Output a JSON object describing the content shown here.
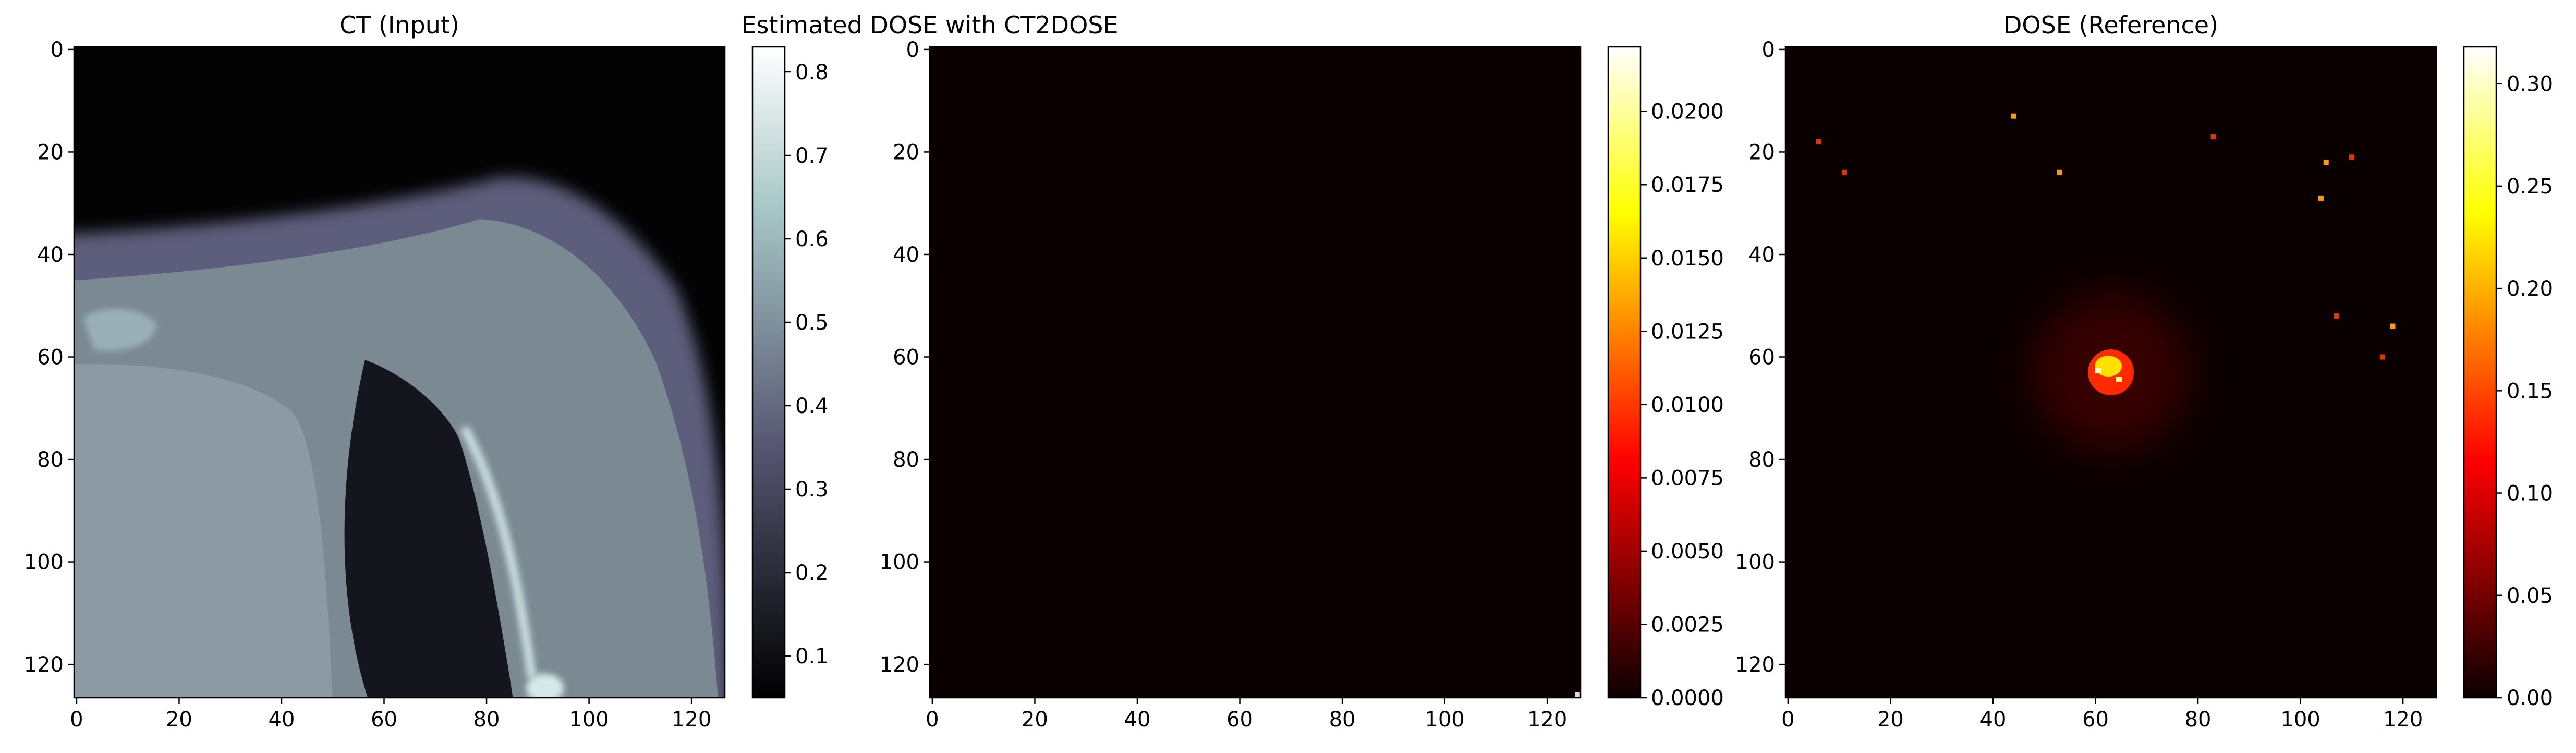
{
  "chart_data": [
    {
      "type": "heatmap",
      "title": "CT (Input)",
      "colormap": "bone",
      "x_ticks": [
        0,
        20,
        40,
        60,
        80,
        100,
        120
      ],
      "y_ticks": [
        0,
        20,
        40,
        60,
        80,
        100,
        120
      ],
      "xlim": [
        0,
        127
      ],
      "ylim": [
        127,
        0
      ],
      "colorbar": {
        "range": [
          0.05,
          0.83
        ],
        "ticks": [
          "0.1",
          "0.2",
          "0.3",
          "0.4",
          "0.5",
          "0.6",
          "0.7",
          "0.8"
        ],
        "tick_values": [
          0.1,
          0.2,
          0.3,
          0.4,
          0.5,
          0.6,
          0.7,
          0.8
        ]
      }
    },
    {
      "type": "heatmap",
      "title": "Estimated DOSE with CT2DOSE",
      "colormap": "hot",
      "x_ticks": [
        0,
        20,
        40,
        60,
        80,
        100,
        120
      ],
      "y_ticks": [
        0,
        20,
        40,
        60,
        80,
        100,
        120
      ],
      "xlim": [
        0,
        127
      ],
      "ylim": [
        127,
        0
      ],
      "colorbar": {
        "range": [
          0,
          0.0222
        ],
        "ticks": [
          "0.0000",
          "0.0025",
          "0.0050",
          "0.0075",
          "0.0100",
          "0.0125",
          "0.0150",
          "0.0175",
          "0.0200"
        ],
        "tick_values": [
          0,
          0.0025,
          0.005,
          0.0075,
          0.01,
          0.0125,
          0.015,
          0.0175,
          0.02
        ]
      }
    },
    {
      "type": "heatmap",
      "title": "DOSE (Reference)",
      "colormap": "hot",
      "x_ticks": [
        0,
        20,
        40,
        60,
        80,
        100,
        120
      ],
      "y_ticks": [
        0,
        20,
        40,
        60,
        80,
        100,
        120
      ],
      "xlim": [
        0,
        127
      ],
      "ylim": [
        127,
        0
      ],
      "colorbar": {
        "range": [
          0,
          0.318
        ],
        "ticks": [
          "0.00",
          "0.05",
          "0.10",
          "0.15",
          "0.20",
          "0.25",
          "0.30"
        ],
        "tick_values": [
          0,
          0.05,
          0.1,
          0.15,
          0.2,
          0.25,
          0.3
        ]
      },
      "hotspot": {
        "x": 63,
        "y": 63,
        "peak": 0.318
      },
      "scattered_points": [
        [
          6,
          18
        ],
        [
          44,
          13
        ],
        [
          11,
          24
        ],
        [
          53,
          24
        ],
        [
          83,
          17
        ],
        [
          105,
          22
        ],
        [
          110,
          21
        ],
        [
          104,
          29
        ],
        [
          107,
          52
        ],
        [
          118,
          54
        ],
        [
          116,
          60
        ]
      ]
    }
  ]
}
